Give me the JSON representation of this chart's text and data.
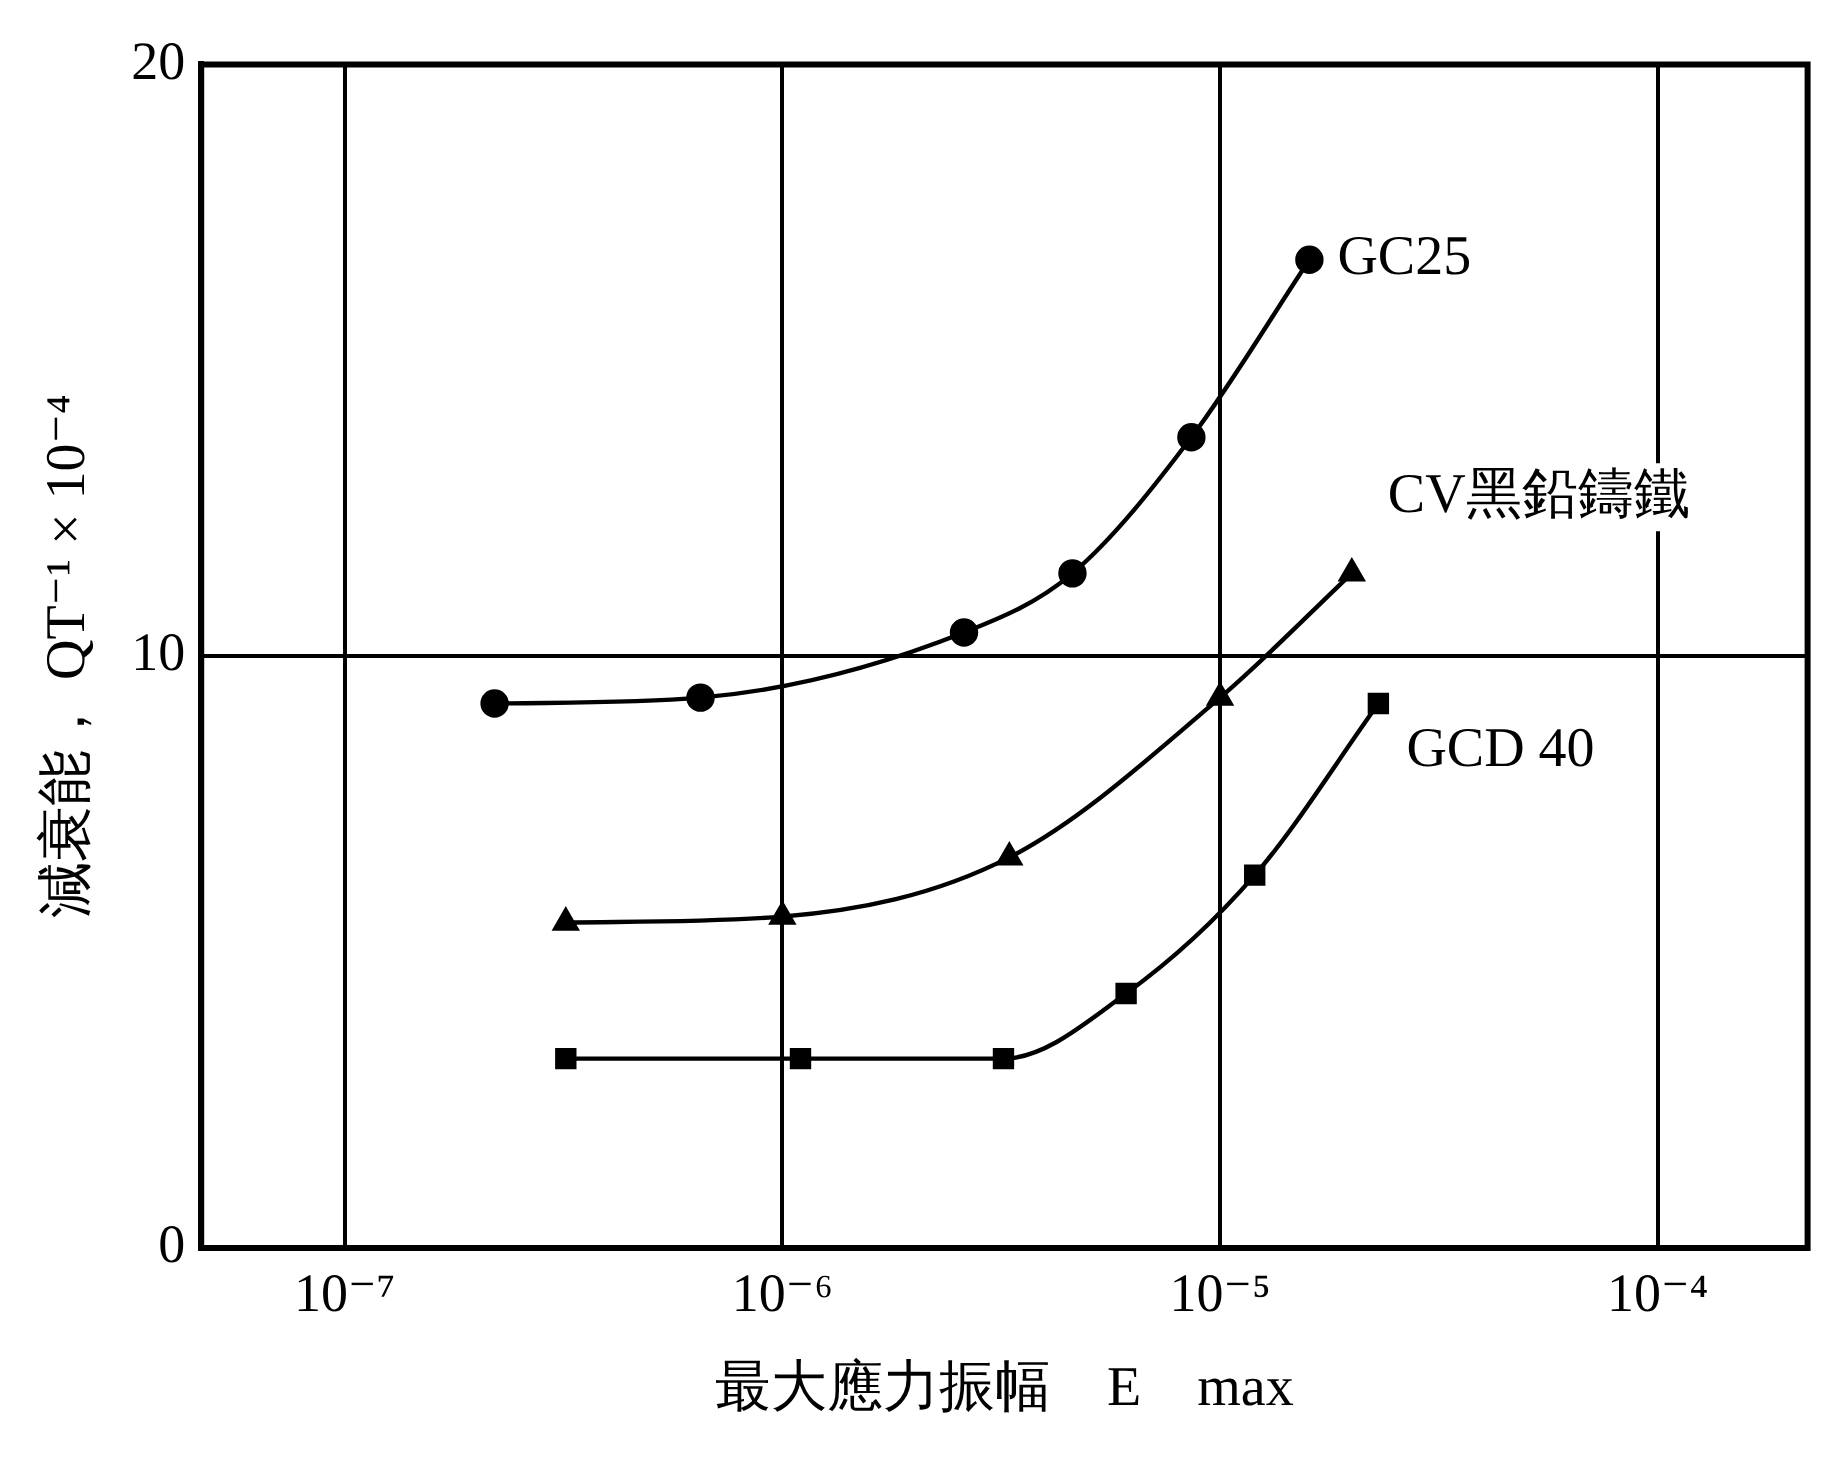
{
  "chart_data": {
    "type": "line",
    "xlabel": "最大應力振幅　E　max",
    "ylabel": "減衰能， QT⁻¹ × 10⁻⁴",
    "log": "x",
    "grid": true,
    "legend": false,
    "line_style": "solid",
    "xlim": [
      4.7e-08,
      0.00022
    ],
    "xticks": [
      {
        "value": 1e-07,
        "label": "10⁻⁷"
      },
      {
        "value": 1e-06,
        "label": "10⁻⁶"
      },
      {
        "value": 1e-05,
        "label": "10⁻⁵"
      },
      {
        "value": 0.0001,
        "label": "10⁻⁴"
      }
    ],
    "ylim": [
      0,
      20
    ],
    "yticks": [
      0,
      10,
      20
    ],
    "series": [
      {
        "name": "GC25",
        "color": "#000000",
        "marker": "circle",
        "x": [
          2.2e-07,
          6.5e-07,
          2.6e-06,
          4.6e-06,
          8.6e-06,
          1.6e-05
        ],
        "values": [
          9.2,
          9.3,
          10.4,
          11.4,
          13.7,
          16.7
        ]
      },
      {
        "name": "CV黑鉛鑄鐵",
        "color": "#000000",
        "marker": "triangle",
        "x": [
          3.2e-07,
          1e-06,
          3.3e-06,
          1e-05,
          2e-05
        ],
        "values": [
          5.5,
          5.6,
          6.6,
          9.3,
          11.4
        ]
      },
      {
        "name": "GCD 40",
        "color": "#000000",
        "marker": "square",
        "x": [
          3.2e-07,
          1.1e-06,
          3.2e-06,
          6.1e-06,
          1.2e-05,
          2.3e-05
        ],
        "values": [
          3.2,
          3.2,
          3.2,
          4.3,
          6.3,
          9.2
        ]
      }
    ]
  }
}
